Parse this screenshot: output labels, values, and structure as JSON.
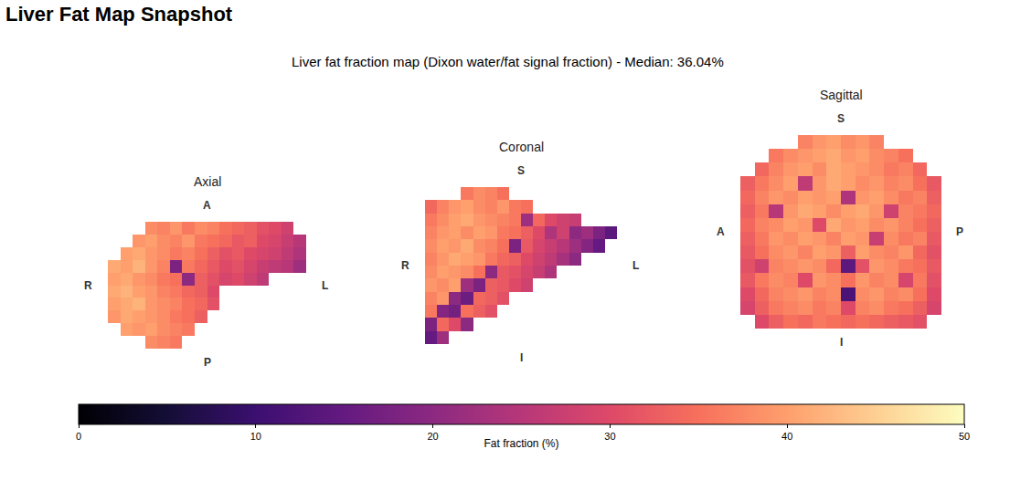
{
  "heading": "Liver Fat Map Snapshot",
  "chart_data": {
    "type": "heatmap",
    "title": "Liver fat fraction map (Dixon water/fat signal fraction) - Median: 36.04%",
    "tick_labels": false,
    "colorbar": {
      "title": "Fat fraction (%)",
      "range": [
        0,
        50
      ],
      "ticks": [
        0,
        10,
        20,
        30,
        40,
        50
      ]
    },
    "panels": [
      {
        "title": "Axial",
        "labels": {
          "top": "A",
          "bottom": "P",
          "left": "R",
          "right": "L"
        },
        "cells": [
          [
            null,
            null,
            null,
            38,
            37,
            39,
            36,
            38,
            37,
            35,
            34,
            33,
            31,
            30,
            28,
            null
          ],
          [
            null,
            null,
            39,
            40,
            38,
            37,
            39,
            36,
            35,
            34,
            32,
            33,
            30,
            29,
            27,
            25
          ],
          [
            null,
            40,
            41,
            39,
            38,
            36,
            37,
            35,
            33,
            31,
            32,
            30,
            29,
            28,
            26,
            24
          ],
          [
            41,
            40,
            42,
            39,
            37,
            18,
            36,
            34,
            32,
            30,
            31,
            29,
            27,
            26,
            25,
            22
          ],
          [
            40,
            41,
            39,
            38,
            36,
            35,
            20,
            33,
            31,
            29,
            30,
            28,
            26,
            null,
            null,
            null
          ],
          [
            41,
            42,
            40,
            39,
            37,
            36,
            34,
            33,
            30,
            null,
            null,
            null,
            null,
            null,
            null,
            null
          ],
          [
            40,
            41,
            42,
            39,
            38,
            37,
            35,
            34,
            31,
            null,
            null,
            null,
            null,
            null,
            null,
            null
          ],
          [
            39,
            41,
            40,
            39,
            38,
            36,
            35,
            33,
            null,
            null,
            null,
            null,
            null,
            null,
            null,
            null
          ],
          [
            null,
            40,
            39,
            40,
            38,
            37,
            36,
            null,
            null,
            null,
            null,
            null,
            null,
            null,
            null,
            null
          ],
          [
            null,
            null,
            null,
            38,
            37,
            36,
            null,
            null,
            null,
            null,
            null,
            null,
            null,
            null,
            null,
            null
          ]
        ]
      },
      {
        "title": "Coronal",
        "labels": {
          "top": "S",
          "bottom": "I",
          "left": "R",
          "right": "L"
        },
        "cells": [
          [
            null,
            null,
            null,
            36,
            38,
            37,
            35,
            null,
            null,
            null,
            null,
            null,
            null,
            null,
            null,
            null
          ],
          [
            34,
            37,
            39,
            40,
            38,
            37,
            39,
            36,
            35,
            null,
            null,
            null,
            null,
            null,
            null,
            null
          ],
          [
            36,
            38,
            40,
            41,
            39,
            38,
            37,
            36,
            22,
            34,
            30,
            28,
            27,
            null,
            null,
            null
          ],
          [
            37,
            39,
            40,
            38,
            40,
            39,
            36,
            35,
            33,
            30,
            24,
            28,
            20,
            22,
            18,
            14
          ],
          [
            38,
            40,
            39,
            41,
            38,
            37,
            35,
            18,
            32,
            29,
            27,
            25,
            22,
            19,
            15,
            null
          ],
          [
            37,
            39,
            41,
            40,
            39,
            36,
            34,
            33,
            30,
            28,
            26,
            23,
            20,
            null,
            null,
            null
          ],
          [
            38,
            40,
            39,
            38,
            35,
            20,
            32,
            31,
            29,
            27,
            24,
            null,
            null,
            null,
            null,
            null
          ],
          [
            39,
            38,
            40,
            22,
            18,
            33,
            32,
            30,
            28,
            null,
            null,
            null,
            null,
            null,
            null,
            null
          ],
          [
            37,
            39,
            20,
            16,
            34,
            33,
            31,
            null,
            null,
            null,
            null,
            null,
            null,
            null,
            null,
            null
          ],
          [
            36,
            19,
            17,
            35,
            33,
            31,
            null,
            null,
            null,
            null,
            null,
            null,
            null,
            null,
            null,
            null
          ],
          [
            18,
            34,
            30,
            20,
            null,
            null,
            null,
            null,
            null,
            null,
            null,
            null,
            null,
            null,
            null,
            null
          ],
          [
            15,
            22,
            null,
            null,
            null,
            null,
            null,
            null,
            null,
            null,
            null,
            null,
            null,
            null,
            null,
            null
          ]
        ]
      },
      {
        "title": "Sagittal",
        "labels": {
          "top": "S",
          "bottom": "I",
          "left": "A",
          "right": "P"
        },
        "cells": [
          [
            null,
            null,
            null,
            null,
            37,
            39,
            40,
            38,
            39,
            37,
            null,
            null,
            null,
            null
          ],
          [
            null,
            null,
            36,
            38,
            39,
            40,
            41,
            39,
            40,
            38,
            37,
            35,
            null,
            null
          ],
          [
            null,
            34,
            37,
            39,
            40,
            38,
            41,
            40,
            39,
            38,
            36,
            37,
            34,
            null
          ],
          [
            33,
            36,
            38,
            40,
            26,
            39,
            41,
            40,
            38,
            39,
            37,
            38,
            35,
            32
          ],
          [
            34,
            37,
            39,
            38,
            40,
            39,
            40,
            24,
            39,
            40,
            38,
            36,
            37,
            33
          ],
          [
            33,
            36,
            25,
            39,
            41,
            40,
            38,
            40,
            41,
            39,
            28,
            37,
            36,
            34
          ],
          [
            34,
            37,
            38,
            40,
            39,
            30,
            41,
            39,
            40,
            38,
            39,
            37,
            35,
            33
          ],
          [
            33,
            36,
            39,
            38,
            40,
            39,
            37,
            40,
            39,
            27,
            38,
            36,
            37,
            32
          ],
          [
            32,
            35,
            38,
            39,
            37,
            40,
            39,
            33,
            40,
            38,
            37,
            39,
            34,
            31
          ],
          [
            31,
            28,
            37,
            38,
            39,
            38,
            34,
            14,
            31,
            39,
            38,
            36,
            35,
            32
          ],
          [
            32,
            36,
            38,
            37,
            30,
            39,
            38,
            35,
            39,
            37,
            38,
            29,
            36,
            31
          ],
          [
            30,
            34,
            37,
            38,
            39,
            37,
            38,
            12,
            38,
            39,
            37,
            38,
            35,
            30
          ],
          [
            29,
            33,
            36,
            37,
            38,
            36,
            37,
            30,
            37,
            38,
            36,
            35,
            33,
            29
          ],
          [
            null,
            30,
            33,
            35,
            34,
            36,
            35,
            34,
            35,
            34,
            33,
            32,
            31,
            null
          ]
        ]
      }
    ]
  }
}
